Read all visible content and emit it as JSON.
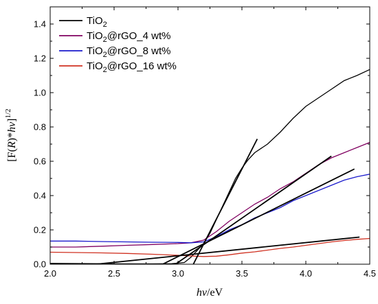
{
  "chart_data": {
    "type": "line",
    "xlabel": {
      "italic": "hν",
      "rest": "/eV"
    },
    "ylabel": {
      "pre": "[F(",
      "italic_r": "R",
      "mid": ")*",
      "italic_hv": "hν",
      "post": "]",
      "sup": "1/2"
    },
    "xlim": [
      2.0,
      4.5
    ],
    "ylim": [
      0.0,
      1.5
    ],
    "xticks": [
      2.0,
      2.5,
      3.0,
      3.5,
      4.0,
      4.5
    ],
    "yticks": [
      0.0,
      0.2,
      0.4,
      0.6,
      0.8,
      1.0,
      1.2,
      1.4
    ],
    "legend_position": "top-left",
    "series": [
      {
        "name": "TiO2",
        "label_base": "TiO",
        "label_sub": "2",
        "label_rest": "",
        "color": "#000000",
        "points": [
          [
            2.0,
            0.005
          ],
          [
            2.2,
            0.004
          ],
          [
            2.4,
            0.003
          ],
          [
            2.6,
            0.002
          ],
          [
            2.8,
            0.002
          ],
          [
            2.95,
            0.003
          ],
          [
            3.05,
            0.01
          ],
          [
            3.1,
            0.04
          ],
          [
            3.15,
            0.08
          ],
          [
            3.2,
            0.12
          ],
          [
            3.25,
            0.18
          ],
          [
            3.3,
            0.26
          ],
          [
            3.35,
            0.34
          ],
          [
            3.4,
            0.42
          ],
          [
            3.45,
            0.5
          ],
          [
            3.5,
            0.56
          ],
          [
            3.55,
            0.61
          ],
          [
            3.6,
            0.65
          ],
          [
            3.7,
            0.7
          ],
          [
            3.8,
            0.77
          ],
          [
            3.9,
            0.85
          ],
          [
            4.0,
            0.92
          ],
          [
            4.1,
            0.97
          ],
          [
            4.2,
            1.02
          ],
          [
            4.3,
            1.07
          ],
          [
            4.4,
            1.1
          ],
          [
            4.5,
            1.135
          ]
        ]
      },
      {
        "name": "TiO2@rGO_4 wt%",
        "label_base": "TiO",
        "label_sub": "2",
        "label_rest": "@rGO_4 wt%",
        "color": "#800060",
        "points": [
          [
            2.0,
            0.1
          ],
          [
            2.2,
            0.1
          ],
          [
            2.4,
            0.105
          ],
          [
            2.6,
            0.11
          ],
          [
            2.8,
            0.115
          ],
          [
            3.0,
            0.12
          ],
          [
            3.1,
            0.125
          ],
          [
            3.2,
            0.14
          ],
          [
            3.3,
            0.19
          ],
          [
            3.4,
            0.25
          ],
          [
            3.5,
            0.3
          ],
          [
            3.6,
            0.35
          ],
          [
            3.7,
            0.39
          ],
          [
            3.8,
            0.44
          ],
          [
            3.9,
            0.48
          ],
          [
            4.0,
            0.53
          ],
          [
            4.1,
            0.58
          ],
          [
            4.2,
            0.62
          ],
          [
            4.3,
            0.65
          ],
          [
            4.4,
            0.68
          ],
          [
            4.5,
            0.71
          ]
        ]
      },
      {
        "name": "TiO2@rGO_8 wt%",
        "label_base": "TiO",
        "label_sub": "2",
        "label_rest": "@rGO_8 wt%",
        "color": "#1a1acc",
        "points": [
          [
            2.0,
            0.135
          ],
          [
            2.2,
            0.135
          ],
          [
            2.4,
            0.132
          ],
          [
            2.6,
            0.13
          ],
          [
            2.8,
            0.128
          ],
          [
            3.0,
            0.127
          ],
          [
            3.1,
            0.125
          ],
          [
            3.2,
            0.13
          ],
          [
            3.3,
            0.16
          ],
          [
            3.4,
            0.2
          ],
          [
            3.5,
            0.23
          ],
          [
            3.6,
            0.27
          ],
          [
            3.7,
            0.3
          ],
          [
            3.8,
            0.33
          ],
          [
            3.9,
            0.37
          ],
          [
            4.0,
            0.4
          ],
          [
            4.1,
            0.43
          ],
          [
            4.2,
            0.46
          ],
          [
            4.3,
            0.49
          ],
          [
            4.4,
            0.51
          ],
          [
            4.5,
            0.525
          ]
        ]
      },
      {
        "name": "TiO2@rGO_16 wt%",
        "label_base": "TiO",
        "label_sub": "2",
        "label_rest": "@rGO_16 wt%",
        "color": "#d03020",
        "points": [
          [
            2.0,
            0.07
          ],
          [
            2.2,
            0.068
          ],
          [
            2.4,
            0.066
          ],
          [
            2.6,
            0.063
          ],
          [
            2.8,
            0.058
          ],
          [
            3.0,
            0.052
          ],
          [
            3.1,
            0.048
          ],
          [
            3.2,
            0.045
          ],
          [
            3.3,
            0.047
          ],
          [
            3.4,
            0.055
          ],
          [
            3.5,
            0.065
          ],
          [
            3.6,
            0.072
          ],
          [
            3.7,
            0.082
          ],
          [
            3.8,
            0.092
          ],
          [
            3.9,
            0.1
          ],
          [
            4.0,
            0.11
          ],
          [
            4.1,
            0.12
          ],
          [
            4.2,
            0.13
          ],
          [
            4.3,
            0.138
          ],
          [
            4.4,
            0.145
          ],
          [
            4.5,
            0.15
          ]
        ]
      }
    ],
    "tangent_lines": [
      {
        "color": "#000000",
        "points": [
          [
            3.12,
            0.0
          ],
          [
            3.62,
            0.73
          ]
        ]
      },
      {
        "color": "#000000",
        "points": [
          [
            2.98,
            0.0
          ],
          [
            4.2,
            0.63
          ]
        ]
      },
      {
        "color": "#000000",
        "points": [
          [
            2.88,
            0.0
          ],
          [
            4.38,
            0.555
          ]
        ]
      },
      {
        "color": "#000000",
        "points": [
          [
            2.36,
            0.0
          ],
          [
            4.42,
            0.158
          ]
        ]
      }
    ]
  }
}
